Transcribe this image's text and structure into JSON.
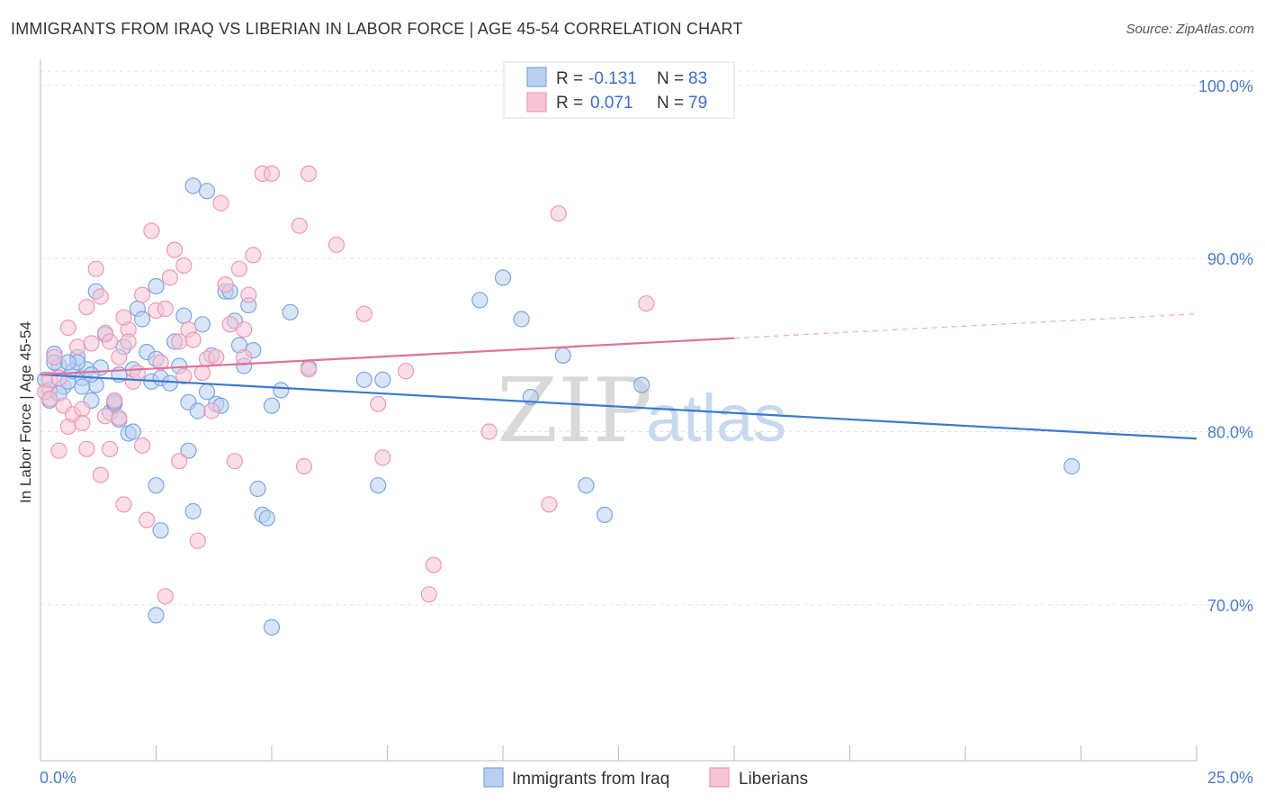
{
  "title": "IMMIGRANTS FROM IRAQ VS LIBERIAN IN LABOR FORCE | AGE 45-54 CORRELATION CHART",
  "source": "Source: ZipAtlas.com",
  "watermark": {
    "zip": "ZIP",
    "atlas": "atlas"
  },
  "legend": {
    "r_label": "R =",
    "n_label": "N =",
    "rows": [
      {
        "r": "-0.131",
        "n": "83"
      },
      {
        "r": "0.071",
        "n": "79"
      }
    ]
  },
  "chart_data": {
    "type": "scatter",
    "title": "IMMIGRANTS FROM IRAQ VS LIBERIAN IN LABOR FORCE | AGE 45-54 CORRELATION CHART",
    "xlabel": "",
    "ylabel": "In Labor Force | Age 45-54",
    "xlim": [
      0,
      25
    ],
    "ylim": [
      61,
      101.5
    ],
    "x_tick_labels": [
      "0.0%",
      "25.0%"
    ],
    "y_ticks": [
      70,
      80,
      90,
      100
    ],
    "y_tick_labels": [
      "70.0%",
      "80.0%",
      "90.0%",
      "100.0%"
    ],
    "grid": true,
    "series": [
      {
        "name": "Immigrants from Iraq",
        "color": "#7aa6e0",
        "fill": "#b9d0f0",
        "line_color": "#3b78d0",
        "trend": {
          "x0": 0,
          "y0": 83.3,
          "x1": 25,
          "y1": 79.6,
          "dashed_from": null
        },
        "points": [
          [
            0.1,
            83.0
          ],
          [
            0.2,
            82.4
          ],
          [
            0.2,
            81.8
          ],
          [
            0.3,
            84.5
          ],
          [
            0.4,
            83.8
          ],
          [
            0.5,
            82.6
          ],
          [
            0.6,
            82.9
          ],
          [
            0.7,
            83.5
          ],
          [
            0.8,
            84.3
          ],
          [
            0.9,
            83.1
          ],
          [
            1.0,
            83.6
          ],
          [
            1.1,
            81.8
          ],
          [
            1.2,
            82.7
          ],
          [
            1.3,
            83.7
          ],
          [
            1.4,
            85.6
          ],
          [
            1.5,
            81.1
          ],
          [
            1.6,
            81.6
          ],
          [
            1.7,
            80.7
          ],
          [
            1.8,
            84.9
          ],
          [
            1.9,
            79.9
          ],
          [
            2.0,
            83.6
          ],
          [
            2.1,
            87.1
          ],
          [
            2.2,
            86.5
          ],
          [
            2.3,
            84.6
          ],
          [
            2.4,
            82.9
          ],
          [
            2.5,
            84.2
          ],
          [
            2.6,
            83.1
          ],
          [
            2.5,
            76.9
          ],
          [
            2.6,
            74.3
          ],
          [
            2.8,
            82.8
          ],
          [
            2.9,
            85.2
          ],
          [
            3.0,
            83.8
          ],
          [
            3.1,
            86.7
          ],
          [
            3.2,
            81.7
          ],
          [
            3.3,
            75.4
          ],
          [
            3.4,
            81.2
          ],
          [
            3.5,
            86.2
          ],
          [
            3.6,
            82.3
          ],
          [
            3.7,
            84.4
          ],
          [
            3.8,
            81.6
          ],
          [
            3.9,
            81.5
          ],
          [
            4.0,
            88.1
          ],
          [
            4.1,
            88.1
          ],
          [
            4.2,
            86.4
          ],
          [
            4.3,
            85.0
          ],
          [
            4.4,
            83.8
          ],
          [
            4.5,
            87.3
          ],
          [
            4.6,
            84.7
          ],
          [
            4.7,
            76.7
          ],
          [
            4.8,
            75.2
          ],
          [
            4.9,
            75.0
          ],
          [
            5.0,
            81.5
          ],
          [
            5.2,
            82.4
          ],
          [
            5.4,
            86.9
          ],
          [
            5.8,
            83.7
          ],
          [
            3.3,
            94.2
          ],
          [
            3.6,
            93.9
          ],
          [
            2.5,
            88.4
          ],
          [
            1.2,
            88.1
          ],
          [
            1.6,
            81.7
          ],
          [
            2.0,
            80.0
          ],
          [
            3.2,
            78.9
          ],
          [
            2.5,
            69.4
          ],
          [
            5.0,
            68.7
          ],
          [
            7.0,
            83.0
          ],
          [
            7.4,
            83.0
          ],
          [
            7.3,
            76.9
          ],
          [
            9.5,
            87.6
          ],
          [
            10.0,
            88.9
          ],
          [
            10.4,
            86.5
          ],
          [
            10.6,
            82.0
          ],
          [
            11.3,
            84.4
          ],
          [
            11.8,
            76.9
          ],
          [
            12.2,
            75.2
          ],
          [
            13.0,
            82.7
          ],
          [
            22.3,
            78.0
          ],
          [
            0.8,
            84.0
          ],
          [
            1.1,
            83.3
          ],
          [
            0.4,
            82.2
          ],
          [
            0.6,
            84.0
          ],
          [
            1.7,
            83.3
          ],
          [
            0.3,
            84.0
          ],
          [
            0.9,
            82.6
          ]
        ]
      },
      {
        "name": "Liberians",
        "color": "#ee98b6",
        "fill": "#f7c5d6",
        "line_color": "#e0709a",
        "trend": {
          "x0": 0,
          "y0": 83.3,
          "x1": 25,
          "y1": 86.8,
          "dashed_from": 15.0
        },
        "points": [
          [
            0.1,
            82.3
          ],
          [
            0.2,
            83.0
          ],
          [
            0.2,
            81.9
          ],
          [
            0.3,
            84.3
          ],
          [
            0.4,
            78.9
          ],
          [
            0.5,
            81.5
          ],
          [
            0.6,
            80.3
          ],
          [
            0.7,
            81.0
          ],
          [
            0.8,
            84.9
          ],
          [
            0.9,
            81.3
          ],
          [
            1.0,
            87.2
          ],
          [
            1.1,
            85.1
          ],
          [
            1.2,
            89.4
          ],
          [
            1.3,
            77.5
          ],
          [
            1.4,
            80.9
          ],
          [
            1.5,
            79.0
          ],
          [
            1.6,
            81.8
          ],
          [
            1.7,
            84.3
          ],
          [
            1.8,
            75.8
          ],
          [
            1.9,
            85.9
          ],
          [
            2.0,
            82.9
          ],
          [
            2.1,
            83.4
          ],
          [
            2.2,
            79.2
          ],
          [
            2.3,
            74.9
          ],
          [
            2.4,
            91.6
          ],
          [
            2.5,
            87.0
          ],
          [
            2.6,
            84.0
          ],
          [
            2.7,
            70.5
          ],
          [
            2.8,
            88.9
          ],
          [
            2.9,
            90.5
          ],
          [
            3.0,
            78.3
          ],
          [
            3.1,
            83.2
          ],
          [
            3.2,
            85.9
          ],
          [
            3.3,
            85.3
          ],
          [
            3.4,
            73.7
          ],
          [
            3.5,
            83.4
          ],
          [
            3.6,
            84.2
          ],
          [
            3.7,
            81.2
          ],
          [
            3.8,
            84.3
          ],
          [
            3.9,
            93.2
          ],
          [
            4.0,
            88.5
          ],
          [
            4.1,
            86.2
          ],
          [
            4.2,
            78.3
          ],
          [
            4.3,
            89.4
          ],
          [
            4.4,
            85.9
          ],
          [
            4.5,
            87.9
          ],
          [
            4.6,
            90.2
          ],
          [
            4.8,
            94.9
          ],
          [
            5.0,
            94.9
          ],
          [
            5.6,
            91.9
          ],
          [
            5.7,
            78.0
          ],
          [
            5.8,
            83.6
          ],
          [
            5.8,
            94.9
          ],
          [
            6.4,
            90.8
          ],
          [
            7.0,
            86.8
          ],
          [
            7.3,
            81.6
          ],
          [
            7.4,
            78.5
          ],
          [
            7.9,
            83.5
          ],
          [
            8.4,
            70.6
          ],
          [
            8.5,
            72.3
          ],
          [
            9.7,
            80.0
          ],
          [
            11.0,
            75.8
          ],
          [
            11.2,
            92.6
          ],
          [
            13.1,
            87.4
          ],
          [
            1.3,
            87.8
          ],
          [
            1.4,
            85.7
          ],
          [
            1.8,
            86.6
          ],
          [
            2.2,
            87.9
          ],
          [
            3.1,
            89.6
          ],
          [
            4.4,
            84.3
          ],
          [
            0.6,
            86.0
          ],
          [
            0.4,
            83.1
          ],
          [
            1.5,
            85.2
          ],
          [
            1.9,
            85.2
          ],
          [
            2.7,
            87.1
          ],
          [
            3.0,
            85.2
          ],
          [
            0.9,
            80.5
          ],
          [
            1.7,
            80.8
          ],
          [
            1.0,
            79.0
          ]
        ]
      }
    ]
  },
  "bottom_legend": [
    "Immigrants from Iraq",
    "Liberians"
  ]
}
